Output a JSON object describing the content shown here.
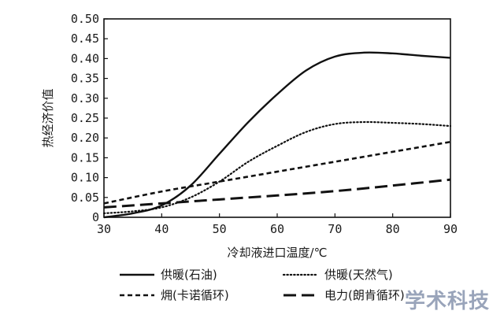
{
  "chart_data": {
    "type": "line",
    "xlabel": "冷却液进口温度/℃",
    "ylabel": "热经济价值",
    "xlim": [
      30,
      90
    ],
    "ylim": [
      0,
      0.5
    ],
    "xticks": [
      30,
      40,
      50,
      60,
      70,
      80,
      90
    ],
    "xtick_labels": [
      "30",
      "40",
      "50",
      "60",
      "70",
      "80",
      "90"
    ],
    "yticks": [
      0,
      0.05,
      0.1,
      0.15,
      0.2,
      0.25,
      0.3,
      0.35,
      0.4,
      0.45,
      0.5
    ],
    "ytick_labels": [
      "0",
      "0.05",
      "0.10",
      "0.15",
      "0.20",
      "0.25",
      "0.30",
      "0.35",
      "0.40",
      "0.45",
      "0.50"
    ],
    "grid": false,
    "legend_position": "bottom",
    "series": [
      {
        "name": "供暖(石油)",
        "style": "solid",
        "x": [
          30,
          35,
          40,
          45,
          50,
          55,
          60,
          65,
          70,
          75,
          80,
          85,
          90
        ],
        "y": [
          0.0,
          0.01,
          0.03,
          0.08,
          0.16,
          0.24,
          0.31,
          0.37,
          0.405,
          0.415,
          0.413,
          0.407,
          0.402
        ]
      },
      {
        "name": "供暖(天然气)",
        "style": "dotted",
        "x": [
          30,
          35,
          40,
          45,
          50,
          55,
          60,
          65,
          70,
          75,
          80,
          85,
          90
        ],
        "y": [
          0.01,
          0.015,
          0.025,
          0.05,
          0.09,
          0.14,
          0.18,
          0.215,
          0.235,
          0.24,
          0.238,
          0.235,
          0.23
        ]
      },
      {
        "name": "㶲(卡诺循环)",
        "style": "short-dash",
        "x": [
          30,
          40,
          50,
          60,
          70,
          80,
          90
        ],
        "y": [
          0.035,
          0.065,
          0.09,
          0.115,
          0.14,
          0.165,
          0.19
        ]
      },
      {
        "name": "电力(朗肯循环)",
        "style": "long-dash",
        "x": [
          30,
          40,
          50,
          60,
          70,
          80,
          90
        ],
        "y": [
          0.025,
          0.035,
          0.045,
          0.055,
          0.066,
          0.08,
          0.095
        ]
      }
    ]
  },
  "watermark": "学术科技"
}
